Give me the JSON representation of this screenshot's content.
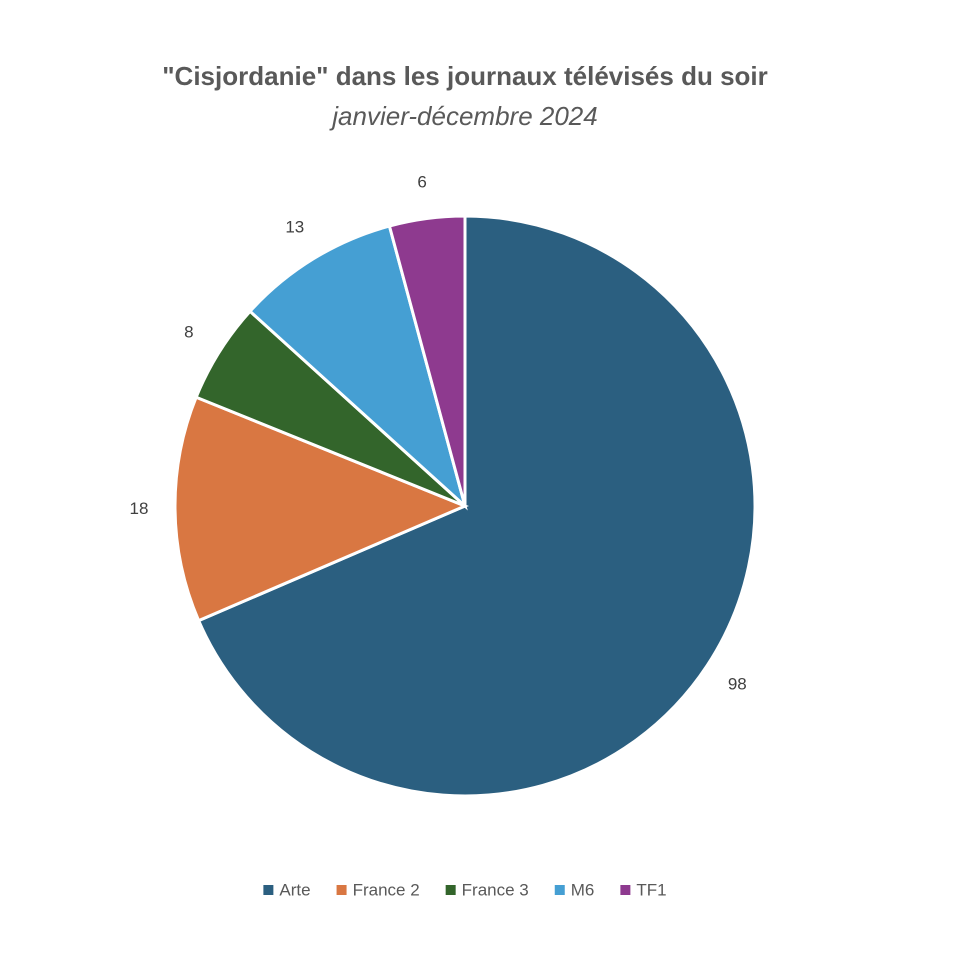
{
  "chart_data": {
    "type": "pie",
    "title": "\"Cisjordanie\" dans les journaux télévisés du soir",
    "subtitle": "janvier-décembre 2024",
    "categories": [
      "Arte",
      "France 2",
      "France 3",
      "M6",
      "TF1"
    ],
    "values": [
      98,
      18,
      8,
      13,
      6
    ],
    "colors": [
      "#2b5f80",
      "#d97742",
      "#33652b",
      "#459fd3",
      "#8e3a8f"
    ],
    "legend": "bottom"
  }
}
